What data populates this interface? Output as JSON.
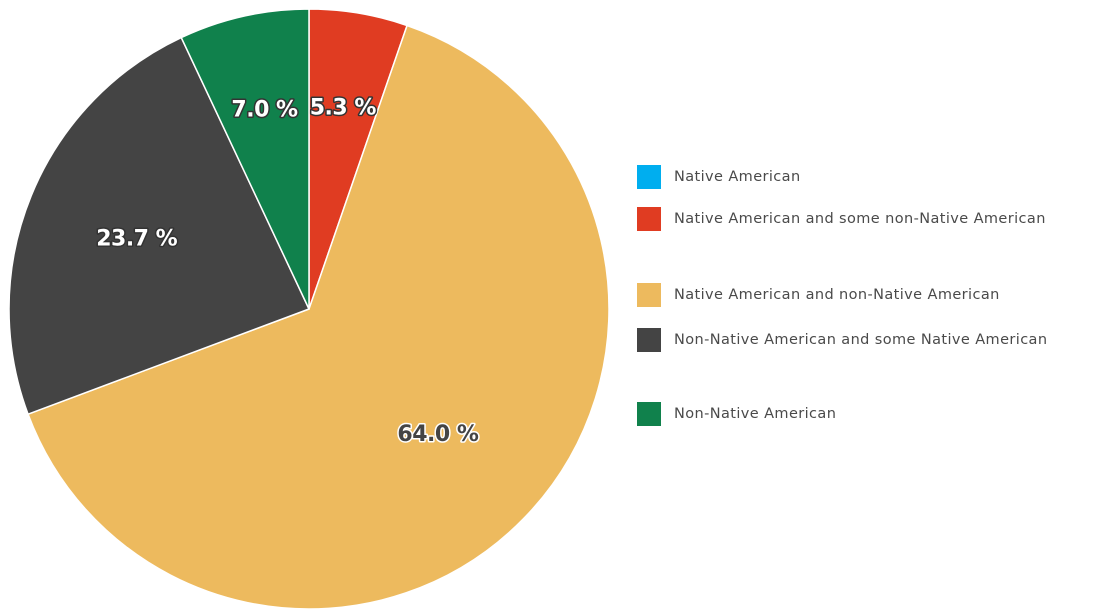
{
  "chart_data": {
    "type": "pie",
    "title": "",
    "slices": [
      {
        "label": "Native American",
        "value": 0.0,
        "value_label": "",
        "color": "#00AEEF"
      },
      {
        "label": "Native American and some non-Native American",
        "value": 5.3,
        "value_label": "5.3 %",
        "color": "#E03C22"
      },
      {
        "label": "Native American and non-Native American",
        "value": 64.0,
        "value_label": "64.0 %",
        "color": "#EDBA5E"
      },
      {
        "label": "Non-Native American and some Native American",
        "value": 23.7,
        "value_label": "23.7 %",
        "color": "#444444"
      },
      {
        "label": "Non-Native American",
        "value": 7.0,
        "value_label": "7.0 %",
        "color": "#10814C"
      }
    ],
    "legend_position": "right",
    "start_angle": "top",
    "direction": "clockwise"
  },
  "legend": {
    "items": [
      {
        "label": "Native American",
        "color": "#00AEEF"
      },
      {
        "label": "Native American and some non-Native American",
        "color": "#E03C22"
      },
      {
        "label": "Native American and non-Native American",
        "color": "#EDBA5E"
      },
      {
        "label": "Non-Native American and some Native American",
        "color": "#444444"
      },
      {
        "label": "Non-Native American",
        "color": "#10814C"
      }
    ]
  }
}
